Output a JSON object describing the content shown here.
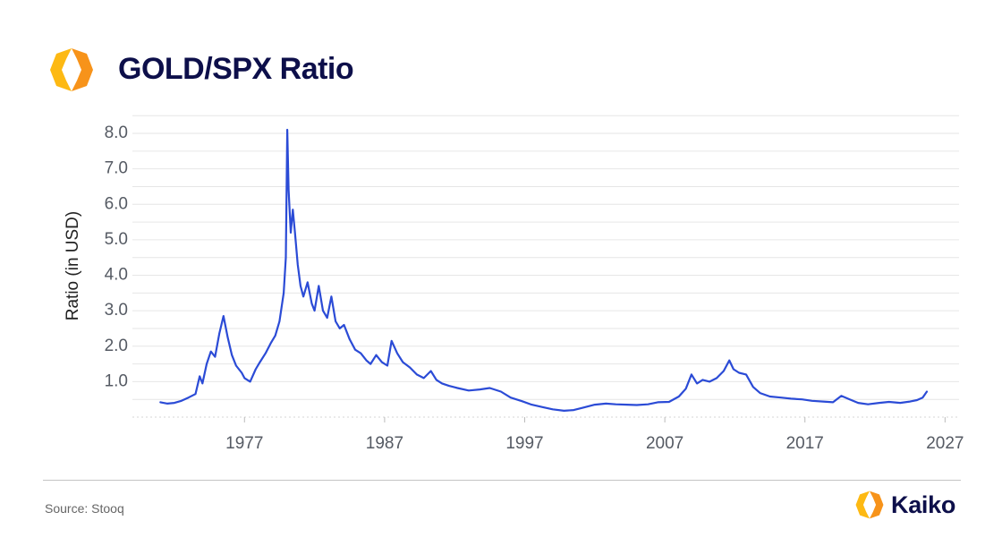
{
  "header": {
    "title": "GOLD/SPX Ratio",
    "logo_icon": "kaiko-logo-icon"
  },
  "footer": {
    "source": "Source: Stooq",
    "brand": "Kaiko",
    "brand_icon": "kaiko-logo-icon"
  },
  "colors": {
    "line": "#2b4bd6",
    "title": "#0d0f4a",
    "logo_orange": "#f7931a",
    "logo_yellow": "#fdb913",
    "grid": "#e6e6e6"
  },
  "chart_data": {
    "type": "line",
    "title": "GOLD/SPX Ratio",
    "xlabel": "",
    "ylabel": "Ratio (in USD)",
    "xlim": [
      1969,
      2028
    ],
    "ylim": [
      0,
      8.5
    ],
    "x_ticks": [
      1977,
      1987,
      1997,
      2007,
      2017,
      2027
    ],
    "y_ticks": [
      1.0,
      2.0,
      3.0,
      4.0,
      5.0,
      6.0,
      7.0,
      8.0
    ],
    "grid": true,
    "legend": "none",
    "series": [
      {
        "x": [
          1971.0,
          1971.5,
          1972.0,
          1972.5,
          1973.0,
          1973.5,
          1973.8,
          1974.0,
          1974.3,
          1974.6,
          1974.9,
          1975.2,
          1975.5,
          1975.8,
          1976.1,
          1976.4,
          1976.8,
          1977.0,
          1977.4,
          1977.8,
          1978.1,
          1978.5,
          1978.9,
          1979.2,
          1979.5,
          1979.8,
          1979.95,
          1980.05,
          1980.15,
          1980.3,
          1980.45,
          1980.6,
          1980.8,
          1981.0,
          1981.2,
          1981.5,
          1981.8,
          1982.0,
          1982.3,
          1982.6,
          1982.9,
          1983.2,
          1983.5,
          1983.8,
          1984.1,
          1984.5,
          1984.9,
          1985.3,
          1985.7,
          1986.0,
          1986.4,
          1986.8,
          1987.2,
          1987.5,
          1987.9,
          1988.3,
          1988.8,
          1989.3,
          1989.8,
          1990.3,
          1990.7,
          1991.1,
          1991.6,
          1992.2,
          1993.0,
          1993.8,
          1994.5,
          1995.3,
          1996.0,
          1996.8,
          1997.5,
          1998.3,
          1999.0,
          1999.8,
          2000.5,
          2001.2,
          2002.0,
          2002.8,
          2003.5,
          2004.3,
          2005.0,
          2005.8,
          2006.5,
          2007.3,
          2008.0,
          2008.5,
          2008.9,
          2009.3,
          2009.7,
          2010.2,
          2010.7,
          2011.2,
          2011.6,
          2011.9,
          2012.3,
          2012.8,
          2013.3,
          2013.8,
          2014.5,
          2015.3,
          2016.0,
          2016.8,
          2017.5,
          2018.3,
          2019.0,
          2019.6,
          2020.2,
          2020.8,
          2021.5,
          2022.3,
          2023.0,
          2023.8,
          2024.5,
          2025.0,
          2025.4,
          2025.7
        ],
        "y": [
          0.42,
          0.38,
          0.4,
          0.46,
          0.55,
          0.65,
          1.15,
          0.95,
          1.5,
          1.85,
          1.7,
          2.35,
          2.85,
          2.25,
          1.75,
          1.45,
          1.25,
          1.1,
          1.0,
          1.35,
          1.55,
          1.8,
          2.1,
          2.3,
          2.7,
          3.5,
          4.5,
          8.1,
          6.4,
          5.2,
          5.85,
          5.2,
          4.3,
          3.7,
          3.4,
          3.8,
          3.2,
          3.0,
          3.7,
          3.0,
          2.8,
          3.4,
          2.7,
          2.5,
          2.6,
          2.2,
          1.9,
          1.8,
          1.6,
          1.5,
          1.75,
          1.55,
          1.45,
          2.15,
          1.8,
          1.55,
          1.4,
          1.2,
          1.1,
          1.3,
          1.05,
          0.95,
          0.88,
          0.82,
          0.75,
          0.78,
          0.82,
          0.72,
          0.55,
          0.45,
          0.35,
          0.28,
          0.22,
          0.18,
          0.2,
          0.27,
          0.35,
          0.38,
          0.36,
          0.35,
          0.34,
          0.36,
          0.42,
          0.43,
          0.58,
          0.8,
          1.2,
          0.95,
          1.05,
          1.0,
          1.1,
          1.3,
          1.6,
          1.35,
          1.25,
          1.2,
          0.85,
          0.68,
          0.58,
          0.55,
          0.52,
          0.5,
          0.46,
          0.44,
          0.42,
          0.6,
          0.5,
          0.4,
          0.36,
          0.4,
          0.43,
          0.4,
          0.44,
          0.48,
          0.55,
          0.72
        ]
      }
    ]
  }
}
